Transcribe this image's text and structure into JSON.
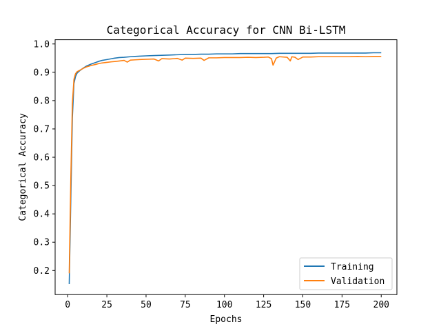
{
  "chart_data": {
    "type": "line",
    "title": "Categorical Accuracy for CNN Bi-LSTM",
    "xlabel": "Epochs",
    "ylabel": "Categorical Accuracy",
    "xlim": [
      -8,
      210
    ],
    "ylim": [
      0.115,
      1.015
    ],
    "xticks": [
      0,
      25,
      50,
      75,
      100,
      125,
      150,
      175,
      200
    ],
    "yticks": [
      0.2,
      0.3,
      0.4,
      0.5,
      0.6,
      0.7,
      0.8,
      0.9,
      1.0
    ],
    "grid": false,
    "legend_position": "lower-right",
    "series": [
      {
        "name": "Training",
        "color": "#1f77b4",
        "x": [
          1,
          2,
          3,
          4,
          5,
          6,
          8,
          10,
          12,
          15,
          18,
          20,
          22,
          25,
          28,
          30,
          33,
          36,
          40,
          43,
          46,
          50,
          55,
          60,
          65,
          70,
          75,
          80,
          85,
          90,
          95,
          100,
          105,
          110,
          115,
          120,
          125,
          130,
          135,
          140,
          145,
          150,
          155,
          160,
          165,
          170,
          175,
          180,
          185,
          190,
          195,
          200
        ],
        "y": [
          0.152,
          0.45,
          0.74,
          0.86,
          0.885,
          0.897,
          0.907,
          0.915,
          0.922,
          0.929,
          0.935,
          0.939,
          0.942,
          0.945,
          0.948,
          0.95,
          0.952,
          0.953,
          0.955,
          0.956,
          0.957,
          0.958,
          0.959,
          0.96,
          0.961,
          0.962,
          0.963,
          0.963,
          0.964,
          0.964,
          0.965,
          0.965,
          0.965,
          0.966,
          0.966,
          0.966,
          0.966,
          0.966,
          0.967,
          0.967,
          0.967,
          0.967,
          0.967,
          0.968,
          0.968,
          0.968,
          0.968,
          0.968,
          0.968,
          0.968,
          0.969,
          0.969
        ]
      },
      {
        "name": "Validation",
        "color": "#ff7f0e",
        "x": [
          1,
          2,
          3,
          4,
          5,
          6,
          8,
          10,
          12,
          15,
          18,
          20,
          22,
          25,
          28,
          30,
          33,
          36,
          38,
          40,
          43,
          46,
          50,
          55,
          58,
          60,
          65,
          70,
          73,
          75,
          80,
          85,
          87,
          90,
          95,
          100,
          105,
          110,
          115,
          120,
          125,
          128,
          130,
          131,
          133,
          135,
          140,
          142,
          143,
          145,
          147,
          150,
          155,
          160,
          165,
          170,
          175,
          180,
          185,
          190,
          195,
          200
        ],
        "y": [
          0.19,
          0.52,
          0.79,
          0.875,
          0.895,
          0.902,
          0.908,
          0.914,
          0.919,
          0.924,
          0.928,
          0.931,
          0.933,
          0.935,
          0.937,
          0.938,
          0.94,
          0.942,
          0.936,
          0.943,
          0.944,
          0.945,
          0.946,
          0.947,
          0.94,
          0.948,
          0.947,
          0.949,
          0.943,
          0.95,
          0.949,
          0.95,
          0.942,
          0.951,
          0.951,
          0.952,
          0.952,
          0.952,
          0.953,
          0.952,
          0.953,
          0.954,
          0.948,
          0.925,
          0.95,
          0.955,
          0.953,
          0.94,
          0.955,
          0.953,
          0.945,
          0.954,
          0.954,
          0.955,
          0.955,
          0.955,
          0.955,
          0.955,
          0.956,
          0.955,
          0.956,
          0.956
        ]
      }
    ]
  }
}
